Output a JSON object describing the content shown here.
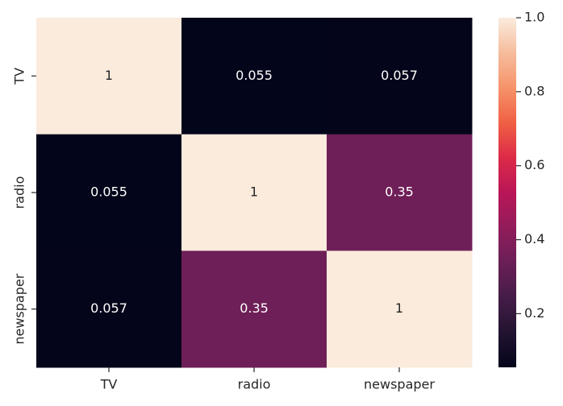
{
  "chart_data": {
    "type": "heatmap",
    "x_categories": [
      "TV",
      "radio",
      "newspaper"
    ],
    "y_categories": [
      "TV",
      "radio",
      "newspaper"
    ],
    "values": [
      [
        1,
        0.055,
        0.057
      ],
      [
        0.055,
        1,
        0.35
      ],
      [
        0.057,
        0.35,
        1
      ]
    ],
    "colormap": "rocket",
    "zlim": [
      0.055,
      1
    ],
    "zticks": [
      0.2,
      0.4,
      0.6,
      0.8,
      {
        "value": 1,
        "label": "1.0"
      }
    ]
  }
}
